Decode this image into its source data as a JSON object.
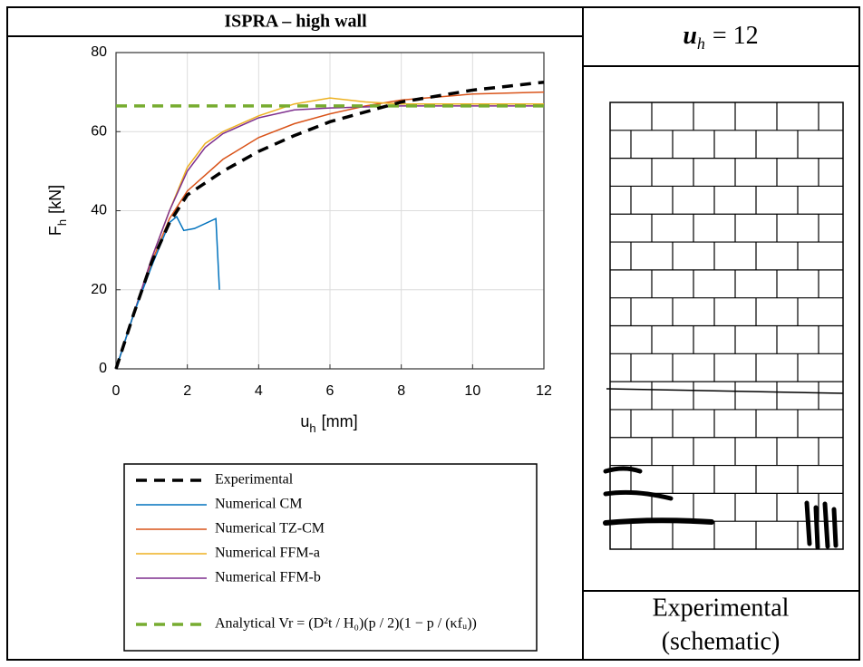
{
  "chart_data": {
    "type": "line",
    "title": "ISPRA – high wall",
    "xlabel": {
      "symbol": "u",
      "subscript": "h",
      "unit": "[mm]"
    },
    "ylabel": {
      "symbol": "F",
      "subscript": "h",
      "unit": "[kN]"
    },
    "xlim": [
      0,
      12
    ],
    "ylim": [
      0,
      80
    ],
    "xticks": [
      0,
      2,
      4,
      6,
      8,
      10,
      12
    ],
    "yticks": [
      0,
      20,
      40,
      60,
      80
    ],
    "grid": true,
    "series": [
      {
        "name": "Experimental",
        "color": "#000000",
        "dashed": true,
        "x": [
          0,
          0.5,
          1,
          1.5,
          2,
          3,
          4,
          5,
          6,
          7,
          8,
          9,
          10,
          11,
          12
        ],
        "values": [
          0,
          14,
          27,
          37,
          44,
          50,
          55,
          59,
          62.5,
          65,
          67.5,
          69,
          70.5,
          71.5,
          72.5
        ]
      },
      {
        "name": "Numerical CM",
        "color": "#0072bd",
        "dashed": false,
        "x": [
          0,
          0.5,
          1,
          1.5,
          1.7,
          1.9,
          2.2,
          2.8,
          2.85,
          2.9
        ],
        "values": [
          0,
          14,
          26,
          37,
          38.5,
          35,
          35.5,
          38,
          29,
          20
        ]
      },
      {
        "name": "Numerical TZ-CM",
        "color": "#d95319",
        "dashed": false,
        "x": [
          0,
          0.5,
          1,
          1.5,
          2,
          3,
          4,
          5,
          6,
          7,
          8,
          10,
          12
        ],
        "values": [
          0,
          14,
          27,
          38,
          45,
          53,
          58.5,
          62,
          64.5,
          66.5,
          68,
          69.5,
          70
        ]
      },
      {
        "name": "Numerical FFM-a",
        "color": "#edb120",
        "dashed": false,
        "x": [
          0,
          0.5,
          1,
          1.5,
          2,
          2.5,
          3,
          4,
          5,
          6,
          7,
          8,
          10,
          12
        ],
        "values": [
          0,
          14,
          28,
          40,
          51,
          57,
          60,
          64,
          67,
          68.5,
          67.5,
          67,
          67,
          67
        ]
      },
      {
        "name": "Numerical FFM-b",
        "color": "#7e2f8e",
        "dashed": false,
        "x": [
          0,
          0.5,
          1,
          1.5,
          2,
          2.5,
          3,
          4,
          5,
          6,
          8,
          12
        ],
        "values": [
          0,
          14,
          28,
          40,
          50,
          56,
          59.5,
          63.5,
          65.5,
          66,
          66.5,
          66.5
        ]
      },
      {
        "name": "Analytical Vr = (D²t / H₀)(p / 2)(1 − p / (κfᵤ))",
        "color": "#77ac30",
        "dashed": true,
        "x": [
          0,
          12
        ],
        "values": [
          66.5,
          66.5
        ]
      }
    ]
  },
  "schematic": {
    "header": {
      "symbol": "u",
      "subscript": "h",
      "relation": "= 12"
    },
    "caption": [
      "Experimental",
      "(schematic)"
    ]
  }
}
